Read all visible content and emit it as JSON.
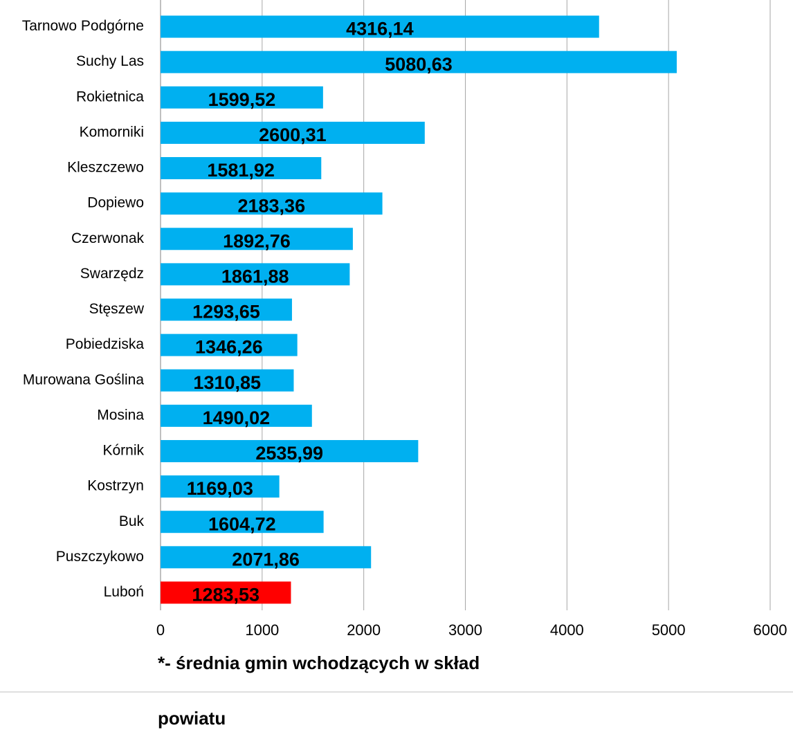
{
  "chart_data": {
    "type": "barh",
    "categories": [
      "Tarnowo Podgórne",
      "Suchy Las",
      "Rokietnica",
      "Komorniki",
      "Kleszczewo",
      "Dopiewo",
      "Czerwonak",
      "Swarzędz",
      "Stęszew",
      "Pobiedziska",
      "Murowana Goślina",
      "Mosina",
      "Kórnik",
      "Kostrzyn",
      "Buk",
      "Puszczykowo",
      "Luboń"
    ],
    "values": [
      4316.14,
      5080.63,
      1599.52,
      2600.31,
      1581.92,
      2183.36,
      1892.76,
      1861.88,
      1293.65,
      1346.26,
      1310.85,
      1490.02,
      2535.99,
      1169.03,
      1604.72,
      2071.86,
      1283.53
    ],
    "value_labels": [
      "4316,14",
      "5080,63",
      "1599,52",
      "2600,31",
      "1581,92",
      "2183,36",
      "1892,76",
      "1861,88",
      "1293,65",
      "1346,26",
      "1310,85",
      "1490,02",
      "2535,99",
      "1169,03",
      "1604,72",
      "2071,86",
      "1283,53"
    ],
    "colors": [
      "#00b0f0",
      "#00b0f0",
      "#00b0f0",
      "#00b0f0",
      "#00b0f0",
      "#00b0f0",
      "#00b0f0",
      "#00b0f0",
      "#00b0f0",
      "#00b0f0",
      "#00b0f0",
      "#00b0f0",
      "#00b0f0",
      "#00b0f0",
      "#00b0f0",
      "#00b0f0",
      "#ff0000"
    ],
    "xlim": [
      0,
      6000
    ],
    "xticks": [
      0,
      1000,
      2000,
      3000,
      4000,
      5000,
      6000
    ],
    "grid": true,
    "footnote": [
      "*- średnia gmin wchodzących w skład",
      "powiatu"
    ]
  }
}
